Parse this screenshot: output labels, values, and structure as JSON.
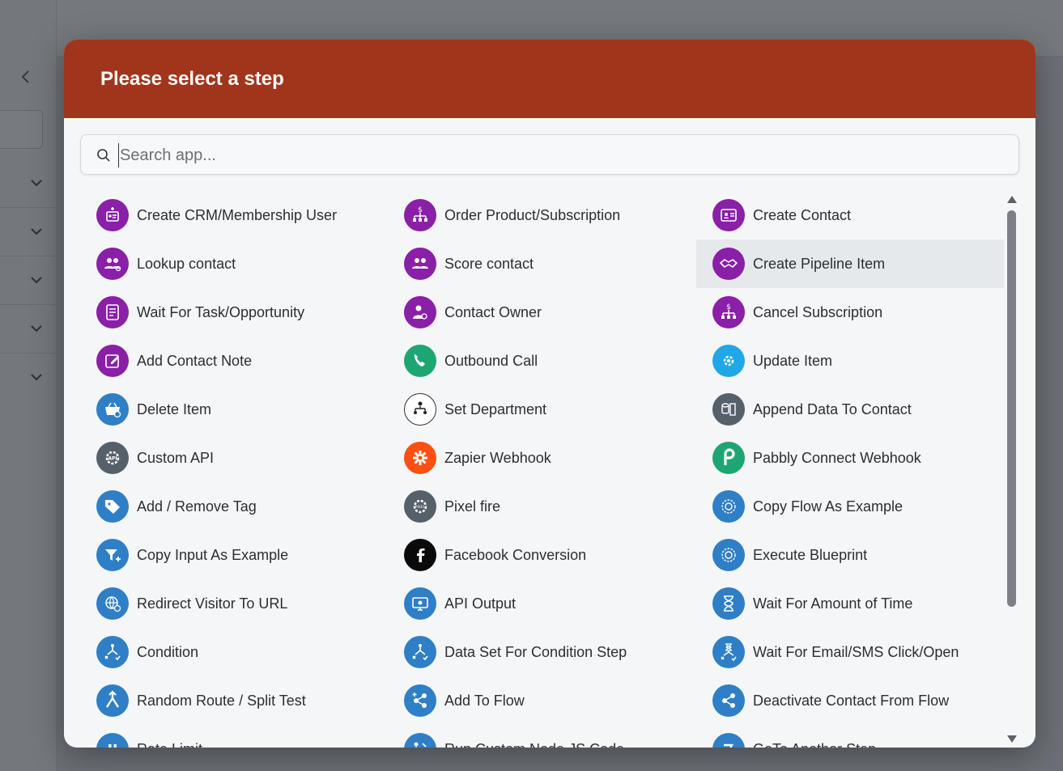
{
  "modal": {
    "title": "Please select a step"
  },
  "search": {
    "placeholder": "Search app..."
  },
  "colors": {
    "header": "#a1351c",
    "purple": "#8a1fa8",
    "blue": "#2f7fc6",
    "green": "#1ea672",
    "orange": "#ff4f12",
    "black": "#0a0a0a",
    "slate": "#56606b",
    "cyan": "#22a7e6"
  },
  "steps": [
    {
      "label": "Create CRM/Membership User",
      "icon": "user-card-icon",
      "color": "#8a1fa8"
    },
    {
      "label": "Order Product/Subscription",
      "icon": "dollar-hierarchy-icon",
      "color": "#8a1fa8"
    },
    {
      "label": "Create Contact",
      "icon": "contact-card-icon",
      "color": "#8a1fa8"
    },
    {
      "label": "Lookup contact",
      "icon": "user-group-search-icon",
      "color": "#8a1fa8"
    },
    {
      "label": "Score contact",
      "icon": "user-group-score-icon",
      "color": "#8a1fa8"
    },
    {
      "label": "Create Pipeline Item",
      "icon": "handshake-icon",
      "color": "#8a1fa8"
    },
    {
      "label": "Wait For Task/Opportunity",
      "icon": "checklist-icon",
      "color": "#8a1fa8"
    },
    {
      "label": "Contact Owner",
      "icon": "user-owner-icon",
      "color": "#8a1fa8"
    },
    {
      "label": "Cancel Subscription",
      "icon": "dollar-hierarchy-icon",
      "color": "#8a1fa8"
    },
    {
      "label": "Add Contact Note",
      "icon": "edit-note-icon",
      "color": "#8a1fa8"
    },
    {
      "label": "Outbound Call",
      "icon": "phone-icon",
      "color": "#1ea672"
    },
    {
      "label": "Update Item",
      "icon": "refresh-gear-icon",
      "color": "#22a7e6"
    },
    {
      "label": "Delete Item",
      "icon": "basket-remove-icon",
      "color": "#2f7fc6"
    },
    {
      "label": "Set Department",
      "icon": "org-chart-icon",
      "color": "#ffffff"
    },
    {
      "label": "Append Data To Contact",
      "icon": "database-checklist-icon",
      "color": "#56606b"
    },
    {
      "label": "Custom API",
      "icon": "api-gear-icon",
      "color": "#56606b"
    },
    {
      "label": "Zapier Webhook",
      "icon": "zapier-icon",
      "color": "#ff4f12"
    },
    {
      "label": "Pabbly Connect Webhook",
      "icon": "pabbly-icon",
      "color": "#1ea672"
    },
    {
      "label": "Add / Remove Tag",
      "icon": "tag-icon",
      "color": "#2f7fc6"
    },
    {
      "label": "Pixel fire",
      "icon": "pixel-gear-icon",
      "color": "#56606b"
    },
    {
      "label": "Copy Flow As Example",
      "icon": "gear-outline-icon",
      "color": "#2f7fc6"
    },
    {
      "label": "Copy Input As Example",
      "icon": "filter-add-icon",
      "color": "#2f7fc6"
    },
    {
      "label": "Facebook Conversion",
      "icon": "facebook-icon",
      "color": "#0a0a0a"
    },
    {
      "label": "Execute Blueprint",
      "icon": "gear-outline-icon",
      "color": "#2f7fc6"
    },
    {
      "label": "Redirect Visitor To URL",
      "icon": "globe-redirect-icon",
      "color": "#2f7fc6"
    },
    {
      "label": "API Output",
      "icon": "monitor-code-icon",
      "color": "#2f7fc6"
    },
    {
      "label": "Wait For Amount of Time",
      "icon": "hourglass-icon",
      "color": "#2f7fc6"
    },
    {
      "label": "Condition",
      "icon": "branch-condition-icon",
      "color": "#2f7fc6"
    },
    {
      "label": "Data Set For Condition Step",
      "icon": "branch-condition-icon",
      "color": "#2f7fc6"
    },
    {
      "label": "Wait For Email/SMS Click/Open",
      "icon": "hourglass-branch-icon",
      "color": "#2f7fc6"
    },
    {
      "label": "Random Route / Split Test",
      "icon": "split-route-icon",
      "color": "#2f7fc6"
    },
    {
      "label": "Add To Flow",
      "icon": "share-add-icon",
      "color": "#2f7fc6"
    },
    {
      "label": "Deactivate Contact From Flow",
      "icon": "share-remove-icon",
      "color": "#2f7fc6"
    },
    {
      "label": "Rate Limit",
      "icon": "pause-icon",
      "color": "#2f7fc6"
    },
    {
      "label": "Run Custom Node JS Code",
      "icon": "code-branch-icon",
      "color": "#2f7fc6"
    },
    {
      "label": "GoTo Another Step",
      "icon": "goto-step-icon",
      "color": "#2f7fc6"
    }
  ]
}
